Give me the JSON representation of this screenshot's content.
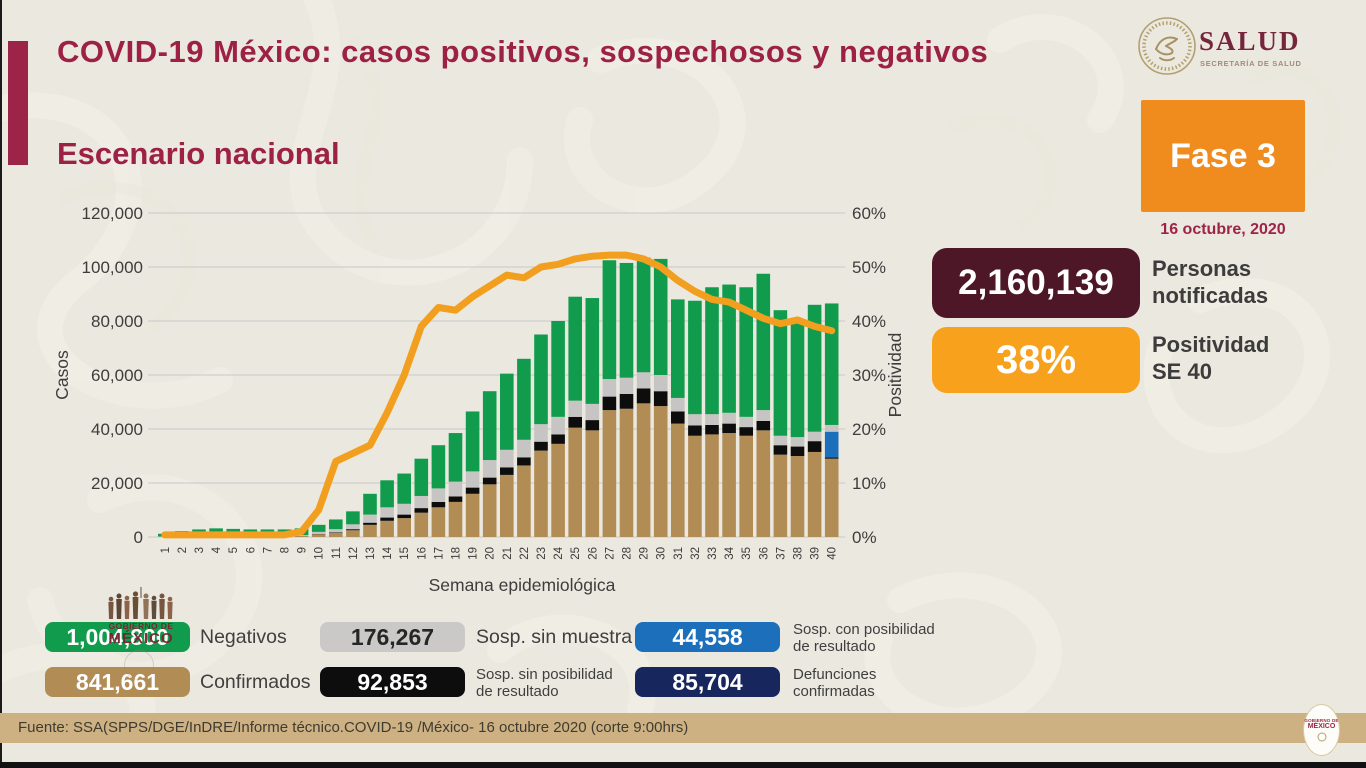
{
  "header": {
    "title": "COVID-19 México: casos positivos, sospechosos y negativos",
    "subtitle": "Escenario nacional",
    "logo": {
      "name": "SALUD",
      "subtitle": "SECRETARÍA DE SALUD"
    }
  },
  "status": {
    "phase_label": "Fase 3",
    "phase_color": "#f08c1e",
    "date": "16 octubre, 2020",
    "stats": [
      {
        "value": "2,160,139",
        "label": "Personas\nnotificadas",
        "color": "#4d1728",
        "text_color": "#ffffff"
      },
      {
        "value": "38%",
        "label": "Positividad\nSE 40",
        "color": "#f7a11c",
        "text_color": "#ffffff"
      }
    ]
  },
  "chart_data": {
    "type": "bar",
    "subtype": "stacked-bars-with-line",
    "xlabel": "Semana epidemiológica",
    "ylabel": "Casos",
    "y2label": "Positividad",
    "ylim": [
      0,
      120000
    ],
    "y2lim": [
      0,
      60
    ],
    "yticks": [
      0,
      20000,
      40000,
      60000,
      80000,
      100000,
      120000
    ],
    "y2ticks": [
      0,
      10,
      20,
      30,
      40,
      50,
      60
    ],
    "grid": true,
    "categories": [
      1,
      2,
      3,
      4,
      5,
      6,
      7,
      8,
      9,
      10,
      11,
      12,
      13,
      14,
      15,
      16,
      17,
      18,
      19,
      20,
      21,
      22,
      23,
      24,
      25,
      26,
      27,
      28,
      29,
      30,
      31,
      32,
      33,
      34,
      35,
      36,
      37,
      38,
      39,
      40
    ],
    "series": [
      {
        "name": "Confirmados",
        "color": "#b28c55",
        "values": [
          100,
          150,
          200,
          250,
          250,
          250,
          300,
          300,
          400,
          1000,
          1500,
          2500,
          4500,
          6000,
          7000,
          9000,
          11000,
          13000,
          16000,
          19500,
          23000,
          26500,
          32000,
          34500,
          40500,
          39500,
          47000,
          47500,
          49500,
          48500,
          42000,
          37500,
          38000,
          38500,
          37500,
          39500,
          30500,
          30000,
          31500,
          29000
        ]
      },
      {
        "name": "Sosp. sin posibilidad de resultado",
        "color": "#0d0d0d",
        "values": [
          0,
          0,
          0,
          0,
          0,
          0,
          0,
          0,
          0,
          100,
          200,
          400,
          800,
          1200,
          1300,
          1700,
          2000,
          2000,
          2300,
          2500,
          2800,
          3000,
          3300,
          3500,
          4000,
          3800,
          5000,
          5500,
          5500,
          5500,
          4500,
          3800,
          3500,
          3500,
          3200,
          3500,
          3500,
          3500,
          4000,
          500
        ]
      },
      {
        "name": "Sosp. con posibilidad de resultado",
        "color": "#1c6fba",
        "values": [
          0,
          0,
          0,
          0,
          0,
          0,
          0,
          0,
          0,
          0,
          0,
          0,
          0,
          0,
          0,
          0,
          0,
          0,
          0,
          0,
          0,
          0,
          0,
          0,
          0,
          0,
          0,
          0,
          0,
          0,
          0,
          0,
          0,
          0,
          0,
          0,
          0,
          0,
          0,
          9500
        ]
      },
      {
        "name": "Sosp. sin muestra",
        "color": "#c6c5c3",
        "values": [
          100,
          150,
          200,
          250,
          250,
          250,
          200,
          200,
          300,
          800,
          1200,
          1800,
          3000,
          3800,
          4000,
          4500,
          5000,
          5500,
          6000,
          6500,
          6500,
          6500,
          6500,
          6500,
          6000,
          6000,
          6500,
          6000,
          6000,
          6000,
          5000,
          4200,
          4000,
          4000,
          3800,
          4000,
          3500,
          3500,
          3500,
          2500
        ]
      },
      {
        "name": "Negativos",
        "color": "#109c4c",
        "values": [
          1000,
          1900,
          2400,
          2700,
          2500,
          2300,
          2300,
          2300,
          2500,
          2600,
          3600,
          4800,
          7700,
          10000,
          11200,
          13800,
          16000,
          18000,
          22200,
          25500,
          28200,
          30000,
          33200,
          35500,
          38500,
          39200,
          44000,
          42500,
          42500,
          43000,
          36500,
          42000,
          47000,
          47500,
          48000,
          50500,
          46500,
          43500,
          47000,
          45000
        ]
      }
    ],
    "line_series": {
      "name": "Positividad",
      "color": "#f29e1e",
      "values": [
        0.4,
        0.4,
        0.4,
        0.4,
        0.4,
        0.4,
        0.4,
        0.4,
        1,
        5,
        14,
        15.5,
        17,
        23,
        30,
        39,
        42.5,
        42,
        44.5,
        46.5,
        48.5,
        48,
        50,
        50.5,
        51.5,
        52,
        52.2,
        52.2,
        51.5,
        50,
        47.5,
        45.5,
        44,
        43.5,
        42,
        40.5,
        39.5,
        40.2,
        39,
        38.2
      ]
    }
  },
  "legend": [
    {
      "value": "1,004,800",
      "label": "Negativos",
      "color": "#109c4c",
      "text_color": "#ffffff",
      "row": 0,
      "col": 0,
      "multiline": false
    },
    {
      "value": "176,267",
      "label": "Sosp. sin muestra",
      "color": "#cac9c7",
      "text_color": "#262626",
      "row": 0,
      "col": 1,
      "multiline": false
    },
    {
      "value": "44,558",
      "label": "Sosp. con posibilidad\nde resultado",
      "color": "#1c6fba",
      "text_color": "#ffffff",
      "row": 0,
      "col": 2,
      "multiline": true
    },
    {
      "value": "841,661",
      "label": "Confirmados",
      "color": "#b28c55",
      "text_color": "#ffffff",
      "row": 1,
      "col": 0,
      "multiline": false
    },
    {
      "value": "92,853",
      "label": "Sosp. sin posibilidad\nde resultado",
      "color": "#0d0d0d",
      "text_color": "#ffffff",
      "row": 1,
      "col": 1,
      "multiline": true
    },
    {
      "value": "85,704",
      "label": "Defunciones\nconfirmadas",
      "color": "#17265c",
      "text_color": "#ffffff",
      "row": 1,
      "col": 2,
      "multiline": true
    }
  ],
  "watermark": {
    "line1": "GOBIERNO DE",
    "line2": "MÉXICO"
  },
  "footer": {
    "source": "Fuente: SSA(SPPS/DGE/InDRE/Informe técnico.COVID-19 /México- 16 octubre 2020 (corte 9:00hrs)",
    "seal_line1": "GOBIERNO DE",
    "seal_line2": "MÉXICO"
  },
  "colors": {
    "background": "#ebe8df",
    "brand_maroon": "#9c2144",
    "accent_bar": "#9d2449",
    "footer_bar": "#cdb183",
    "grid_line": "#c9c9c9",
    "axis_text": "#3d3d3d"
  }
}
